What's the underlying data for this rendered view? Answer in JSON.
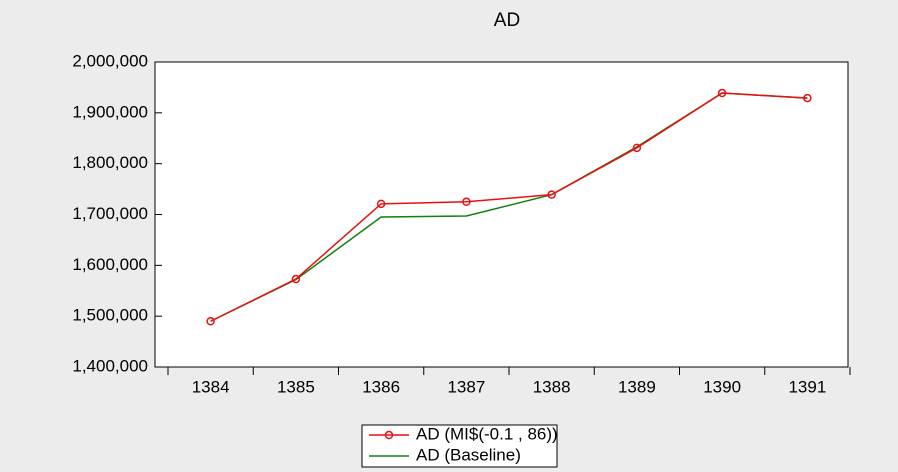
{
  "chart_data": {
    "type": "line",
    "title": "AD",
    "categories": [
      "1384",
      "1385",
      "1386",
      "1387",
      "1388",
      "1389",
      "1390",
      "1391"
    ],
    "series": [
      {
        "name": "AD (MI$(-0.1 , 86))",
        "color": "#e81010",
        "marker": "circle",
        "values": [
          1490000,
          1573000,
          1721000,
          1725000,
          1739000,
          1831000,
          1939000,
          1929000
        ]
      },
      {
        "name": "AD (Baseline)",
        "color": "#108010",
        "values": [
          1490000,
          1572000,
          1695000,
          1697000,
          1739000,
          1833000,
          1939000,
          1929000
        ]
      }
    ],
    "ylim": [
      1400000,
      2000000
    ],
    "yticks": [
      {
        "value": 1400000,
        "label": "1,400,000"
      },
      {
        "value": 1500000,
        "label": "1,500,000"
      },
      {
        "value": 1600000,
        "label": "1,600,000"
      },
      {
        "value": 1700000,
        "label": "1,700,000"
      },
      {
        "value": 1800000,
        "label": "1,800,000"
      },
      {
        "value": 1900000,
        "label": "1,900,000"
      },
      {
        "value": 2000000,
        "label": "2,000,000"
      }
    ],
    "legend": "bottom"
  }
}
